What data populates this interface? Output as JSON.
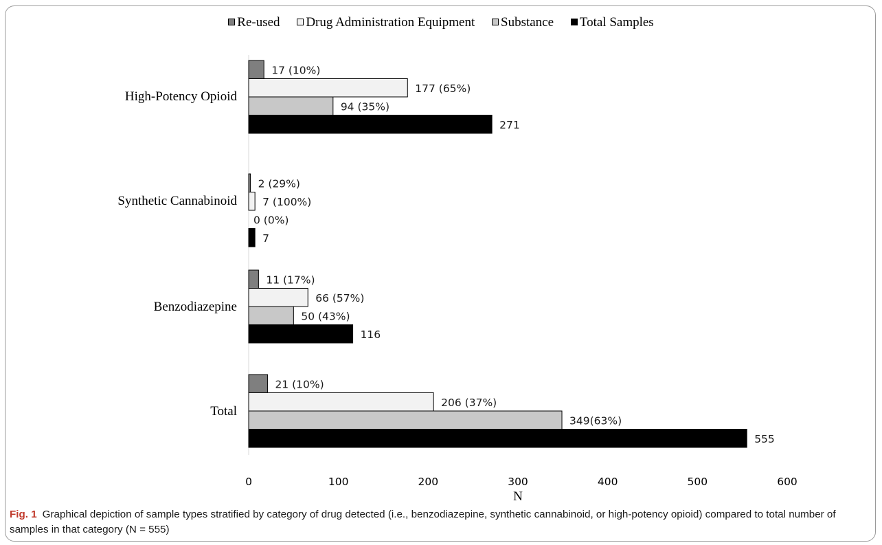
{
  "chart_data": {
    "type": "bar",
    "orientation": "horizontal",
    "categories": [
      "High-Potency Opioid",
      "Synthetic Cannabinoid",
      "Benzodiazepine",
      "Total"
    ],
    "series": [
      {
        "name": "Re-used",
        "color": "#7f7f7f",
        "values": [
          17,
          2,
          11,
          21
        ],
        "labels": [
          "17 (10%)",
          "2 (29%)",
          "11 (17%)",
          "21 (10%)"
        ]
      },
      {
        "name": "Drug Administration Equipment",
        "color": "#f2f2f2",
        "values": [
          177,
          7,
          66,
          206
        ],
        "labels": [
          "177 (65%)",
          "7 (100%)",
          "66 (57%)",
          "206 (37%)"
        ]
      },
      {
        "name": "Substance",
        "color": "#c8c8c8",
        "values": [
          94,
          0,
          50,
          349
        ],
        "labels": [
          "94 (35%)",
          "0 (0%)",
          "50 (43%)",
          "349(63%)"
        ]
      },
      {
        "name": "Total Samples",
        "color": "#000000",
        "values": [
          271,
          7,
          116,
          555
        ],
        "labels": [
          "271",
          "7",
          "116",
          "555"
        ]
      }
    ],
    "xlim": [
      0,
      600
    ],
    "xticks": [
      0,
      100,
      200,
      300,
      400,
      500,
      600
    ],
    "xlabel": "N",
    "ylabel": "",
    "legend": "top",
    "grid": false
  },
  "caption": {
    "label": "Fig. 1",
    "text": "Graphical depiction of sample types stratified by category of drug detected (i.e., benzodiazepine, synthetic cannabinoid, or high-potency opioid) compared to total number of samples in that category (N = 555)"
  }
}
